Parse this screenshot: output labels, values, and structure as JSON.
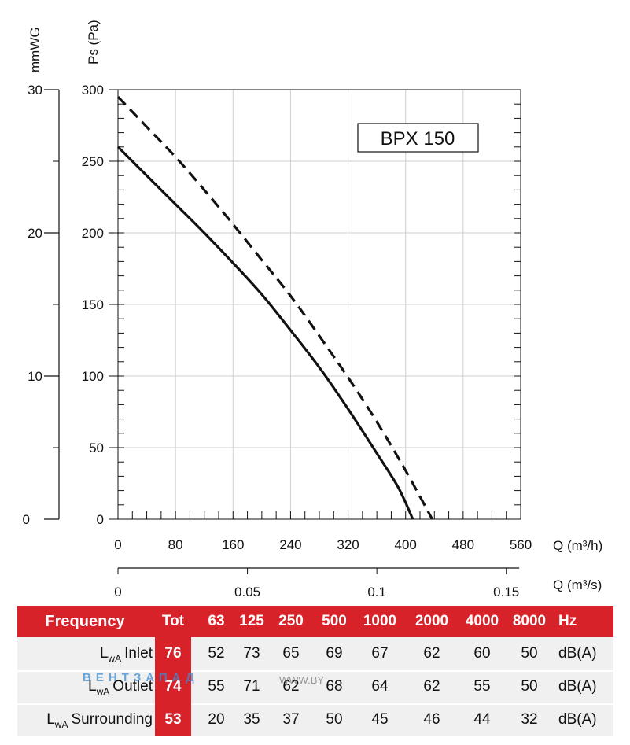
{
  "chart_data": {
    "type": "line",
    "title": "BPX 150",
    "ylabel": "Ps (Pa)",
    "ylabel_secondary": "mmWG",
    "xlabel": "Q (m³/h)",
    "xlabel_secondary": "Q (m³/s)",
    "xlim": [
      0,
      560
    ],
    "ylim": [
      0,
      300
    ],
    "ylim_secondary": [
      0,
      30
    ],
    "x_ticks": [
      0,
      80,
      160,
      240,
      320,
      400,
      480,
      560
    ],
    "y_ticks": [
      0,
      50,
      100,
      150,
      200,
      250,
      300
    ],
    "y_ticks_secondary": [
      0,
      10,
      20,
      30
    ],
    "x2_ticks": [
      0,
      0.05,
      0.1,
      0.15
    ],
    "x2_tick_labels": [
      "0",
      "0.05",
      "0.1",
      "0.15"
    ],
    "series": [
      {
        "name": "dashed",
        "style": "dashed",
        "points": [
          [
            0,
            295
          ],
          [
            40,
            274
          ],
          [
            80,
            253
          ],
          [
            120,
            230
          ],
          [
            160,
            206
          ],
          [
            200,
            181
          ],
          [
            240,
            156
          ],
          [
            280,
            128
          ],
          [
            320,
            99
          ],
          [
            360,
            68
          ],
          [
            400,
            34
          ],
          [
            437,
            0
          ]
        ]
      },
      {
        "name": "solid",
        "style": "solid",
        "points": [
          [
            0,
            260
          ],
          [
            40,
            240
          ],
          [
            80,
            220
          ],
          [
            120,
            200
          ],
          [
            160,
            179
          ],
          [
            200,
            157
          ],
          [
            240,
            132
          ],
          [
            280,
            106
          ],
          [
            320,
            77
          ],
          [
            360,
            46
          ],
          [
            390,
            22
          ],
          [
            410,
            0
          ]
        ]
      }
    ]
  },
  "table": {
    "header": {
      "label": "Frequency",
      "tot": "Tot",
      "bands": [
        "63",
        "125",
        "250",
        "500",
        "1000",
        "2000",
        "4000",
        "8000"
      ],
      "unit": "Hz"
    },
    "rows": [
      {
        "lw": "L",
        "sub": "wA",
        "name": "Inlet",
        "tot": "76",
        "values": [
          "52",
          "73",
          "65",
          "69",
          "67",
          "62",
          "60",
          "50"
        ],
        "unit": "dB(A)"
      },
      {
        "lw": "L",
        "sub": "wA",
        "name": "Outlet",
        "tot": "74",
        "values": [
          "55",
          "71",
          "62",
          "68",
          "64",
          "62",
          "55",
          "50"
        ],
        "unit": "dB(A)"
      },
      {
        "lw": "L",
        "sub": "wA",
        "name": "Surrounding",
        "tot": "53",
        "values": [
          "20",
          "35",
          "37",
          "50",
          "45",
          "46",
          "44",
          "32"
        ],
        "unit": "dB(A)"
      }
    ]
  },
  "watermark": {
    "brand": "ВЕНТЗАПАД",
    "url": "WWW.BY"
  }
}
